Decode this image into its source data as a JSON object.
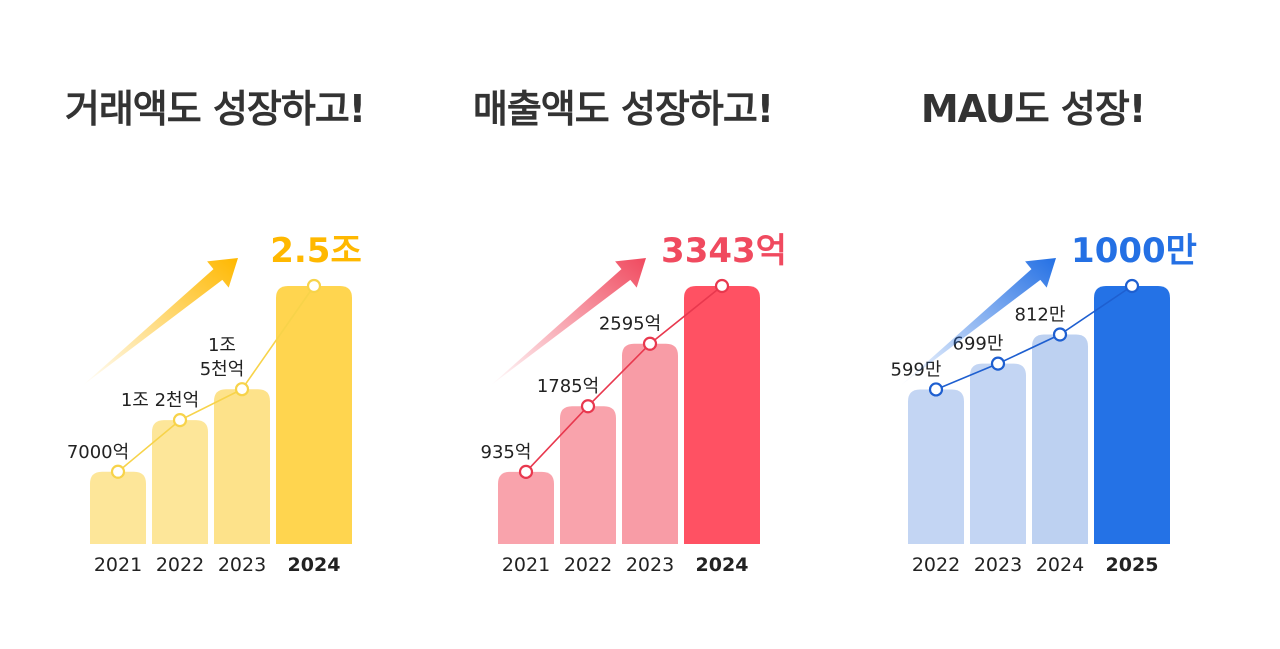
{
  "panels": [
    {
      "title": "거래액도 성장하고!",
      "colors": {
        "accent": "#FFB800",
        "bar_light": "#FDE699",
        "bar_mid": "#FDE28A",
        "bar_final": "#FFD54F",
        "line": "#F7D34A"
      }
    },
    {
      "title": "매출액도 성장하고!",
      "colors": {
        "accent": "#F04A5F",
        "bar_light": "#F9A3AC",
        "bar_mid": "#F89CA6",
        "bar_final": "#FF5163",
        "line": "#E8384E"
      }
    },
    {
      "title": "MAU도 성장!",
      "colors": {
        "accent": "#2470E4",
        "bar_light": "#C3D5F3",
        "bar_mid": "#BDD1F1",
        "bar_final": "#2472E6",
        "line": "#1E5FD0"
      }
    }
  ],
  "chart_data": [
    {
      "type": "bar",
      "title": "거래액도 성장하고!",
      "categories": [
        "2021",
        "2022",
        "2023",
        "2024"
      ],
      "values": [
        7000,
        12000,
        15000,
        25000
      ],
      "unit": "억",
      "value_labels": [
        [
          "7000억"
        ],
        [
          "1조 2천억"
        ],
        [
          "1조",
          "5천억"
        ],
        [
          "2.5조"
        ]
      ],
      "highlight_last": true,
      "trend_line": true
    },
    {
      "type": "bar",
      "title": "매출액도 성장하고!",
      "categories": [
        "2021",
        "2022",
        "2023",
        "2024"
      ],
      "values": [
        935,
        1785,
        2595,
        3343
      ],
      "unit": "억",
      "value_labels": [
        [
          "935억"
        ],
        [
          "1785억"
        ],
        [
          "2595억"
        ],
        [
          "3343억"
        ]
      ],
      "highlight_last": true,
      "trend_line": true
    },
    {
      "type": "bar",
      "title": "MAU도 성장!",
      "categories": [
        "2022",
        "2023",
        "2024",
        "2025"
      ],
      "values": [
        599,
        699,
        812,
        1000
      ],
      "unit": "만",
      "value_labels": [
        [
          "599만"
        ],
        [
          "699만"
        ],
        [
          "812만"
        ],
        [
          "1000만"
        ]
      ],
      "highlight_last": true,
      "trend_line": true
    }
  ]
}
